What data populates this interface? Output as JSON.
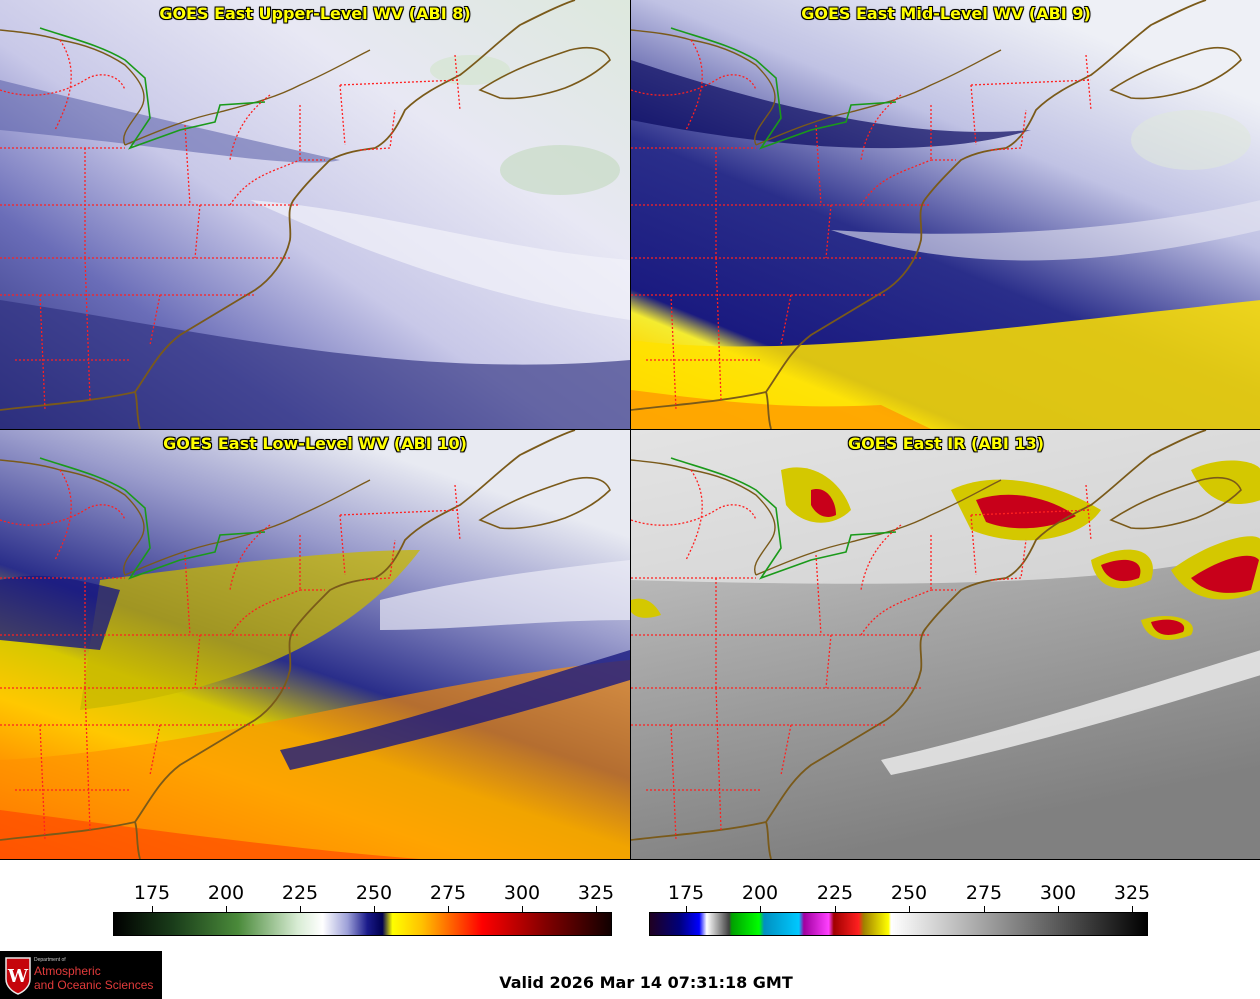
{
  "panels": [
    {
      "title": "GOES East Upper-Level WV (ABI 8)"
    },
    {
      "title": "GOES East Mid-Level WV (ABI 9)"
    },
    {
      "title": "GOES East Low-Level WV (ABI 10)"
    },
    {
      "title": "GOES East IR (ABI 13)"
    }
  ],
  "colorbars": {
    "wv": {
      "ticks": [
        "175",
        "200",
        "225",
        "250",
        "275",
        "300",
        "325"
      ]
    },
    "ir": {
      "ticks": [
        "175",
        "200",
        "225",
        "250",
        "275",
        "300",
        "325"
      ]
    }
  },
  "footer": {
    "valid": "Valid 2026 Mar 14 07:31:18 GMT",
    "logo_dept": "Department of",
    "logo_line1": "Atmospheric",
    "logo_line2": "and Oceanic Sciences",
    "logo_letter": "W"
  },
  "colors": {
    "state_borders": "#ff2020",
    "coastline": "#7a5a1a",
    "canada_border": "#1a9a1a",
    "title_text": "#ffff00"
  }
}
